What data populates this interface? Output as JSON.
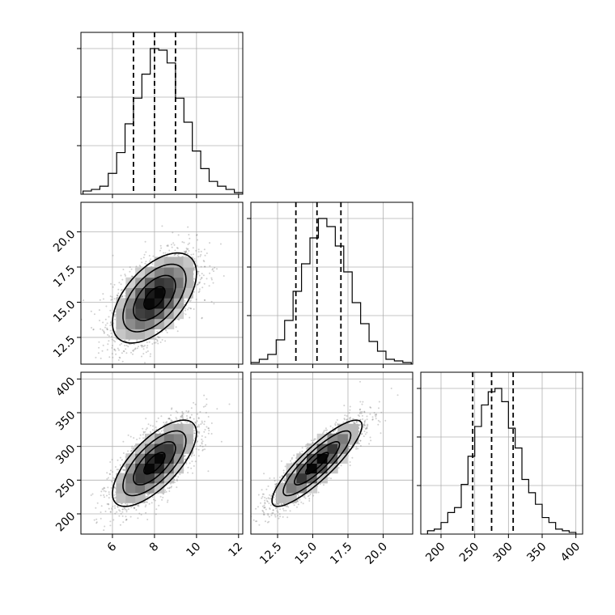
{
  "chart_data": {
    "type": "corner",
    "grid": true,
    "variables": [
      {
        "name": "",
        "range": [
          4.5,
          12.2
        ],
        "ticks": [
          6,
          8,
          10,
          12
        ],
        "tick_labels": [
          "6",
          "8",
          "10",
          "12"
        ],
        "quantiles": [
          7.0,
          8.0,
          9.0
        ],
        "hist_edges": [
          4.6,
          5.0,
          5.4,
          5.8,
          6.2,
          6.6,
          7.0,
          7.4,
          7.8,
          8.2,
          8.6,
          9.0,
          9.4,
          9.8,
          10.2,
          10.6,
          11.0,
          11.4,
          11.8,
          12.2
        ],
        "hist_counts": [
          2,
          3,
          5,
          13,
          26,
          44,
          60,
          75,
          91,
          90,
          82,
          60,
          45,
          27,
          16,
          8,
          5,
          3,
          1
        ]
      },
      {
        "name": "",
        "range": [
          10.6,
          22.1
        ],
        "ticks": [
          12.5,
          15.0,
          17.5,
          20.0
        ],
        "tick_labels": [
          "12.5",
          "15.0",
          "17.5",
          "20.0"
        ],
        "quantiles": [
          13.8,
          15.3,
          17.0
        ],
        "hist_edges": [
          10.6,
          11.2,
          11.8,
          12.4,
          13.0,
          13.6,
          14.2,
          14.8,
          15.4,
          16.0,
          16.6,
          17.2,
          17.8,
          18.4,
          19.0,
          19.6,
          20.2,
          20.8,
          21.4,
          22.0
        ],
        "hist_counts": [
          1,
          3,
          6,
          15,
          27,
          45,
          62,
          78,
          90,
          85,
          73,
          57,
          38,
          25,
          14,
          8,
          3,
          2,
          1
        ]
      },
      {
        "name": "",
        "range": [
          170,
          410
        ],
        "ticks": [
          200,
          250,
          300,
          350,
          400
        ],
        "tick_labels": [
          "200",
          "250",
          "300",
          "350",
          "400"
        ],
        "quantiles": [
          247,
          275,
          307
        ],
        "hist_edges": [
          180,
          190,
          200,
          210,
          220,
          230,
          240,
          250,
          260,
          270,
          280,
          290,
          300,
          310,
          320,
          330,
          340,
          350,
          360,
          370,
          380,
          390,
          400
        ],
        "hist_counts": [
          2,
          3,
          7,
          13,
          16,
          30,
          47,
          65,
          78,
          86,
          88,
          80,
          64,
          52,
          33,
          25,
          18,
          10,
          7,
          3,
          2,
          1
        ]
      }
    ],
    "pairs": [
      {
        "x": 0,
        "y": 1,
        "center": [
          8.0,
          15.3
        ],
        "sd": [
          1.0,
          1.6
        ],
        "corr": 0.55
      },
      {
        "x": 0,
        "y": 2,
        "center": [
          8.0,
          275
        ],
        "sd": [
          1.0,
          32
        ],
        "corr": 0.7
      },
      {
        "x": 1,
        "y": 2,
        "center": [
          15.3,
          275
        ],
        "sd": [
          1.6,
          32
        ],
        "corr": 0.87
      }
    ],
    "contour_levels_sigma": [
      0.5,
      1.0,
      1.5,
      2.0
    ]
  }
}
